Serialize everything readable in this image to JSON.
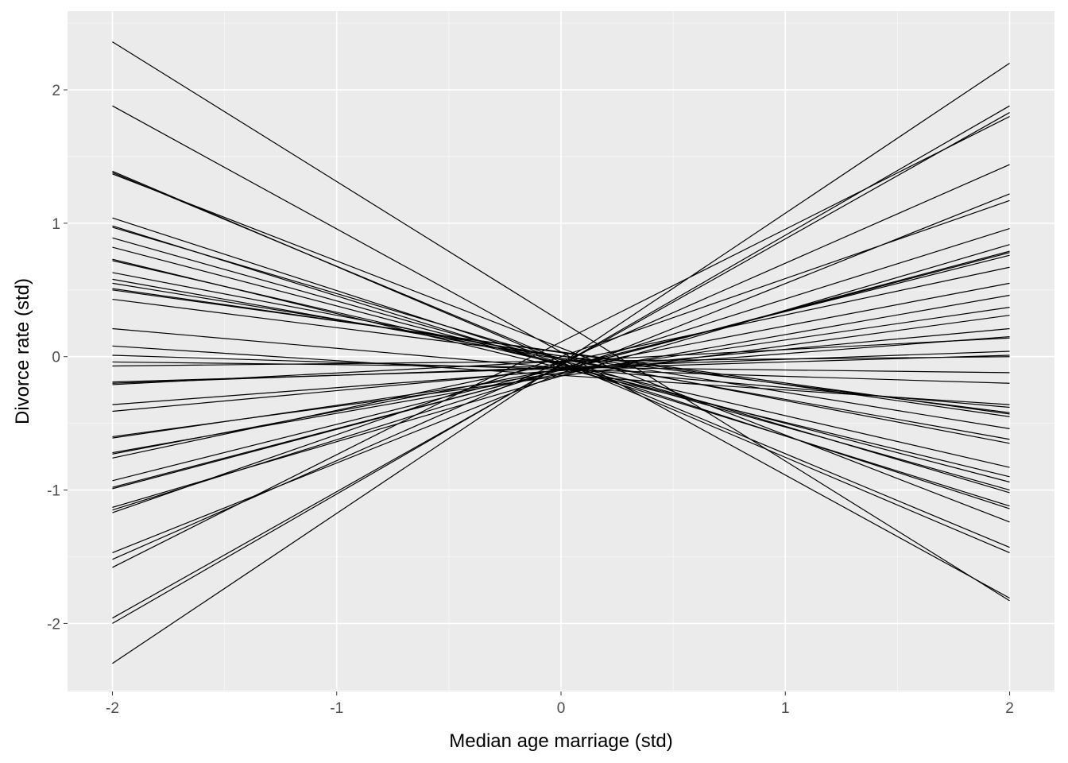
{
  "chart_data": {
    "type": "line",
    "title": "",
    "xlabel": "Median age marriage (std)",
    "ylabel": "Divorce rate (std)",
    "xlim": [
      -2.2,
      2.2
    ],
    "ylim": [
      -2.51,
      2.59
    ],
    "x_ticks": [
      "-2",
      "-1",
      "0",
      "1",
      "2"
    ],
    "y_ticks": [
      "-2",
      "-1",
      "0",
      "1",
      "2"
    ],
    "grid": true,
    "panel_background": "#EBEBEB",
    "line_color": "#000000",
    "line_x": [
      -2,
      2
    ],
    "lines_y": [
      [
        2.36,
        -1.83
      ],
      [
        1.88,
        -1.81
      ],
      [
        1.39,
        -1.47
      ],
      [
        1.38,
        -1.43
      ],
      [
        1.37,
        -1.24
      ],
      [
        1.04,
        -1.14
      ],
      [
        0.98,
        -1.12
      ],
      [
        0.97,
        -1.02
      ],
      [
        0.89,
        -1.0
      ],
      [
        0.82,
        -0.94
      ],
      [
        0.73,
        -0.9
      ],
      [
        0.72,
        -0.83
      ],
      [
        0.63,
        -0.65
      ],
      [
        0.58,
        -0.62
      ],
      [
        0.55,
        -0.54
      ],
      [
        0.51,
        -0.45
      ],
      [
        0.5,
        -0.43
      ],
      [
        0.43,
        -0.42
      ],
      [
        0.21,
        -0.38
      ],
      [
        0.08,
        -0.36
      ],
      [
        0.01,
        -0.2
      ],
      [
        -0.04,
        -0.12
      ],
      [
        -0.07,
        0
      ],
      [
        -0.19,
        0.01
      ],
      [
        -0.2,
        0.04
      ],
      [
        -0.21,
        0.14
      ],
      [
        -0.36,
        0.15
      ],
      [
        -0.41,
        0.21
      ],
      [
        -0.6,
        0.31
      ],
      [
        -0.61,
        0.37
      ],
      [
        -0.72,
        0.46
      ],
      [
        -0.73,
        0.55
      ],
      [
        -0.76,
        0.67
      ],
      [
        -0.93,
        0.76
      ],
      [
        -0.98,
        0.78
      ],
      [
        -0.99,
        0.79
      ],
      [
        -1.13,
        0.84
      ],
      [
        -1.15,
        0.96
      ],
      [
        -1.17,
        1.17
      ],
      [
        -1.47,
        1.22
      ],
      [
        -1.52,
        1.44
      ],
      [
        -1.58,
        1.8
      ],
      [
        -1.96,
        1.83
      ],
      [
        -2.0,
        1.88
      ],
      [
        -2.3,
        2.2
      ]
    ]
  }
}
